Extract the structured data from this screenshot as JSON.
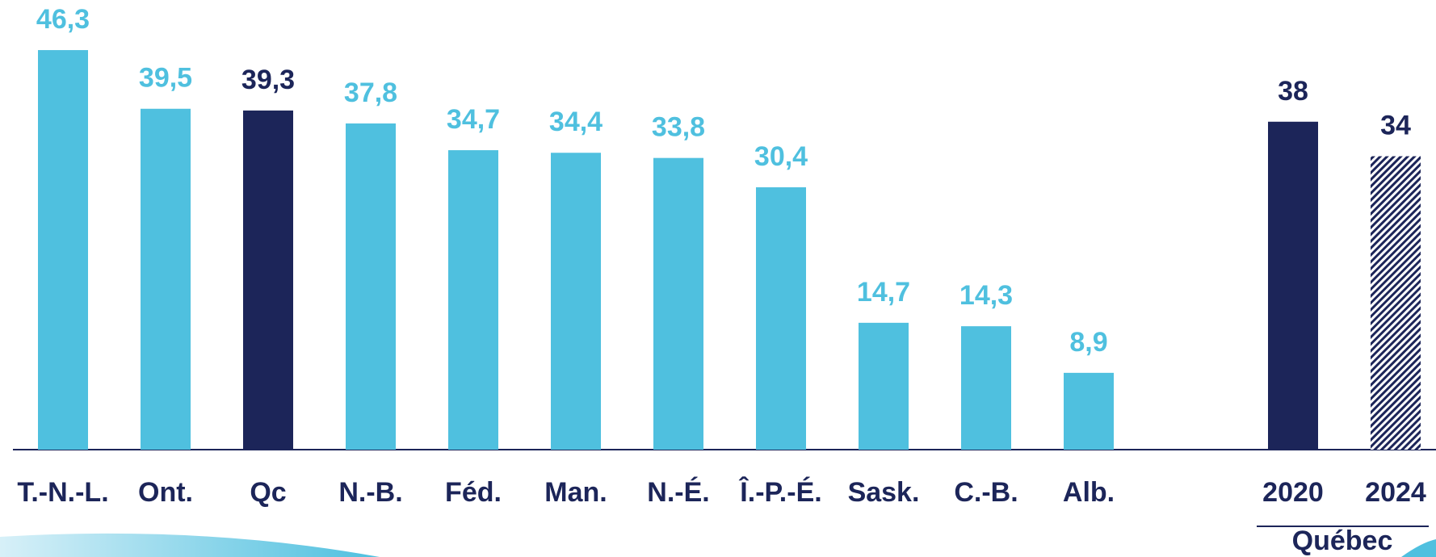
{
  "chart_data": {
    "type": "bar",
    "categories": [
      "T.-N.-L.",
      "Ont.",
      "Qc",
      "N.-B.",
      "Féd.",
      "Man.",
      "N.-É.",
      "Î.-P.-É.",
      "Sask.",
      "C.-B.",
      "Alb.",
      "2020",
      "2024"
    ],
    "values": [
      46.3,
      39.5,
      39.3,
      37.8,
      34.7,
      34.4,
      33.8,
      30.4,
      14.7,
      14.3,
      8.9,
      38,
      34
    ],
    "value_labels": [
      "46,3",
      "39,5",
      "39,3",
      "37,8",
      "34,7",
      "34,4",
      "33,8",
      "30,4",
      "14,7",
      "14,3",
      "8,9",
      "38",
      "34"
    ],
    "colors": [
      "#4fc0df",
      "#4fc0df",
      "#1c2559",
      "#4fc0df",
      "#4fc0df",
      "#4fc0df",
      "#4fc0df",
      "#4fc0df",
      "#4fc0df",
      "#4fc0df",
      "#4fc0df",
      "#1c2559",
      "#1c2559"
    ],
    "styles": [
      "solid",
      "solid",
      "solid",
      "solid",
      "solid",
      "solid",
      "solid",
      "solid",
      "solid",
      "solid",
      "solid",
      "solid",
      "hatched"
    ],
    "group_label": "Québec"
  }
}
